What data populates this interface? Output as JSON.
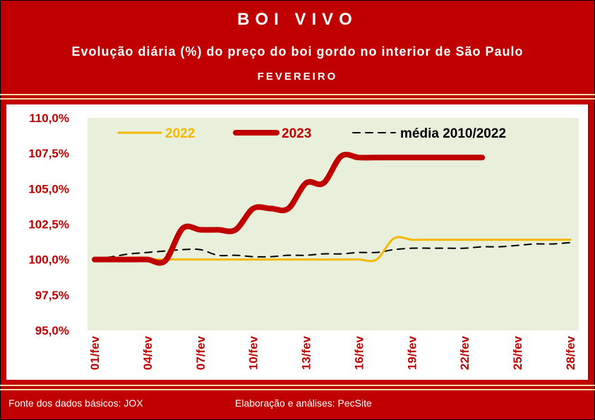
{
  "header": {
    "title": "BOI VIVO",
    "subtitle": "Evolução diária (%) do preço do boi gordo no interior de São Paulo",
    "month": "FEVEREIRO"
  },
  "footer": {
    "source": "Fonte dos dados básicos: JOX",
    "credits": "Elaboração e análises: PecSite"
  },
  "colors": {
    "frame": "#c00000",
    "plot_bg": "#e8f0dc",
    "series_2022": "#f5b800",
    "series_2023": "#c00000",
    "series_media": "#000000"
  },
  "chart_data": {
    "type": "line",
    "ylim": [
      95.0,
      110.0
    ],
    "yticks": [
      "95,0%",
      "97,5%",
      "100,0%",
      "102,5%",
      "105,0%",
      "107,5%",
      "110,0%"
    ],
    "ytick_values": [
      95.0,
      97.5,
      100.0,
      102.5,
      105.0,
      107.5,
      110.0
    ],
    "xticks": [
      "01/fev",
      "04/fev",
      "07/fev",
      "10/fev",
      "13/fev",
      "16/fev",
      "19/fev",
      "22/fev",
      "25/fev",
      "28/fev"
    ],
    "xtick_days": [
      1,
      4,
      7,
      10,
      13,
      16,
      19,
      22,
      25,
      28
    ],
    "xlim": [
      1,
      28
    ],
    "legend_position": "top",
    "series": [
      {
        "name": "2022",
        "x": [
          1,
          2,
          3,
          4,
          5,
          6,
          7,
          8,
          9,
          10,
          11,
          12,
          13,
          14,
          15,
          16,
          17,
          18,
          19,
          20,
          21,
          22,
          23,
          24,
          25,
          26,
          27,
          28
        ],
        "values": [
          100.0,
          100.0,
          100.0,
          100.0,
          100.0,
          100.0,
          100.0,
          100.0,
          100.0,
          100.0,
          100.0,
          100.0,
          100.0,
          100.0,
          100.0,
          100.0,
          100.0,
          101.5,
          101.4,
          101.4,
          101.4,
          101.4,
          101.4,
          101.4,
          101.4,
          101.4,
          101.4,
          101.4
        ]
      },
      {
        "name": "2023",
        "x": [
          1,
          2,
          3,
          4,
          5,
          6,
          7,
          8,
          9,
          10,
          11,
          12,
          13,
          14,
          15,
          16,
          17,
          18,
          19,
          20,
          21,
          22,
          23
        ],
        "values": [
          100.0,
          100.0,
          100.0,
          100.0,
          99.9,
          102.2,
          102.1,
          102.1,
          102.1,
          103.6,
          103.6,
          103.6,
          105.4,
          105.4,
          107.3,
          107.2,
          107.2,
          107.2,
          107.2,
          107.2,
          107.2,
          107.2,
          107.2
        ]
      },
      {
        "name": "média 2010/2022",
        "x": [
          1,
          2,
          3,
          4,
          5,
          6,
          7,
          8,
          9,
          10,
          11,
          12,
          13,
          14,
          15,
          16,
          17,
          18,
          19,
          20,
          21,
          22,
          23,
          24,
          25,
          26,
          27,
          28
        ],
        "values": [
          100.0,
          100.2,
          100.4,
          100.5,
          100.6,
          100.7,
          100.7,
          100.3,
          100.3,
          100.2,
          100.2,
          100.3,
          100.3,
          100.4,
          100.4,
          100.5,
          100.5,
          100.7,
          100.8,
          100.8,
          100.8,
          100.8,
          100.9,
          100.9,
          101.0,
          101.1,
          101.1,
          101.2
        ]
      }
    ]
  }
}
